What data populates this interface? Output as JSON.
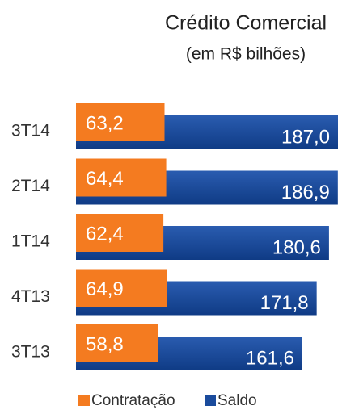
{
  "chart_data": {
    "type": "bar",
    "orientation": "horizontal",
    "overlap": true,
    "title": "Crédito Comercial",
    "subtitle": "(em R$ bilhões)",
    "categories": [
      "3T14",
      "2T14",
      "1T14",
      "4T13",
      "3T13"
    ],
    "series": [
      {
        "name": "Contratação",
        "color": "#f47b20",
        "values": [
          63.2,
          64.4,
          62.4,
          64.9,
          58.8
        ],
        "value_labels": [
          "63,2",
          "64,4",
          "62,4",
          "64,9",
          "58,8"
        ]
      },
      {
        "name": "Saldo",
        "color": "#1a4b9c",
        "values": [
          187.0,
          186.9,
          180.6,
          171.8,
          161.6
        ],
        "value_labels": [
          "187,0",
          "186,9",
          "180,6",
          "171,8",
          "161,6"
        ]
      }
    ],
    "legend": "bottom"
  }
}
